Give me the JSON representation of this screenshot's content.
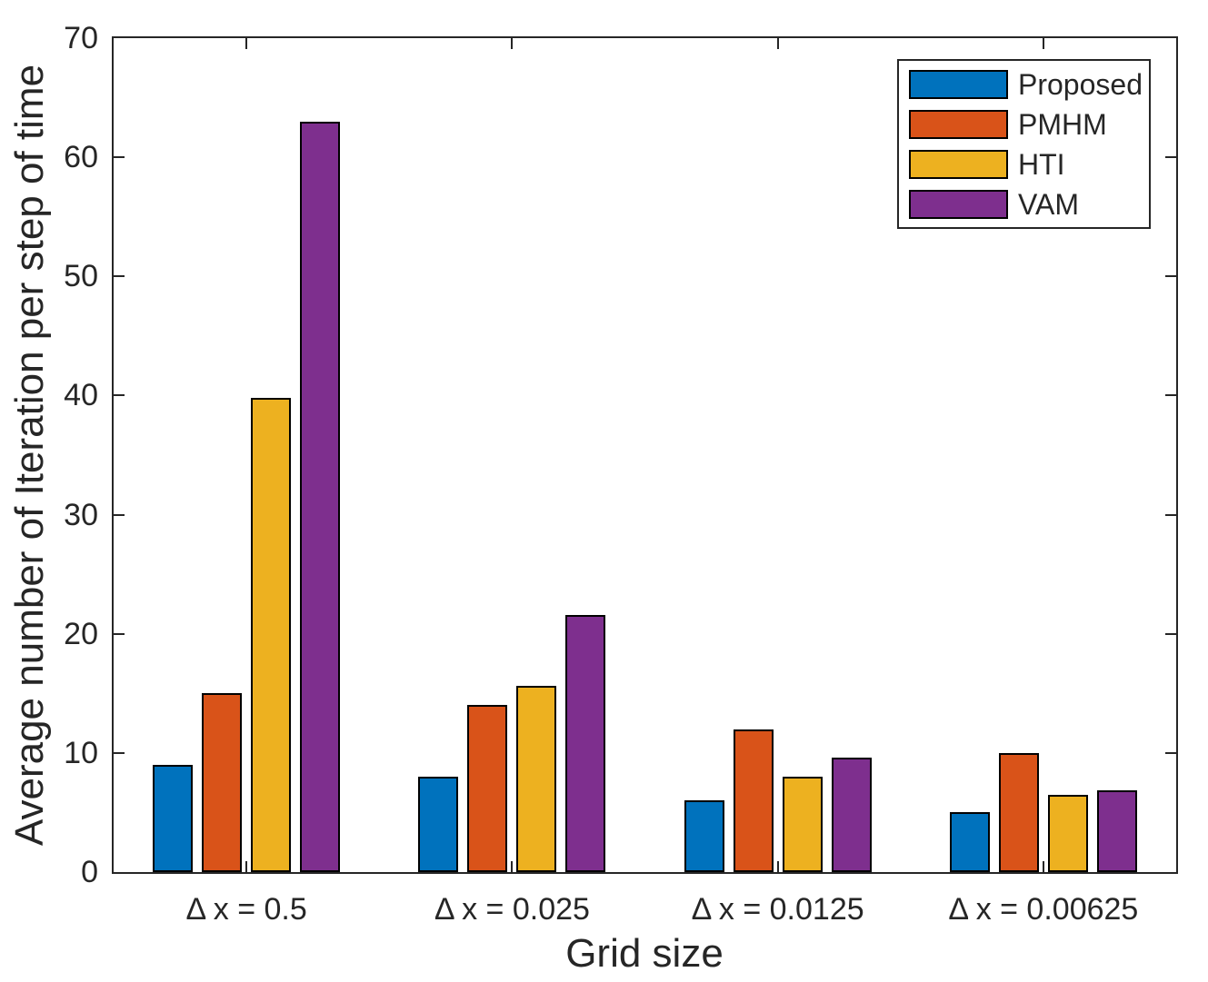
{
  "figure": {
    "background": "#ffffff",
    "axis_color": "#262626",
    "bar_edge_color": "#000000"
  },
  "chart_data": {
    "type": "bar",
    "title": "",
    "xlabel": "Grid size",
    "ylabel": "Average number of Iteration per step of time",
    "categories": [
      "Δ x = 0.5",
      "Δ x = 0.025",
      "Δ x = 0.0125",
      "Δ x = 0.00625"
    ],
    "series": [
      {
        "name": "Proposed",
        "color": "#0072BD",
        "values": [
          9,
          8,
          6,
          5
        ]
      },
      {
        "name": "PMHM",
        "color": "#D95319",
        "values": [
          15,
          14,
          12,
          10
        ]
      },
      {
        "name": "HTI",
        "color": "#EDB120",
        "values": [
          39.8,
          15.6,
          8,
          6.5
        ]
      },
      {
        "name": "VAM",
        "color": "#7E2F8E",
        "values": [
          63,
          21.6,
          9.6,
          6.9
        ]
      }
    ],
    "ylim": [
      0,
      70
    ],
    "yticks": [
      0,
      10,
      20,
      30,
      40,
      50,
      60,
      70
    ],
    "grid": false,
    "legend_position": "top-right",
    "box": "on"
  }
}
